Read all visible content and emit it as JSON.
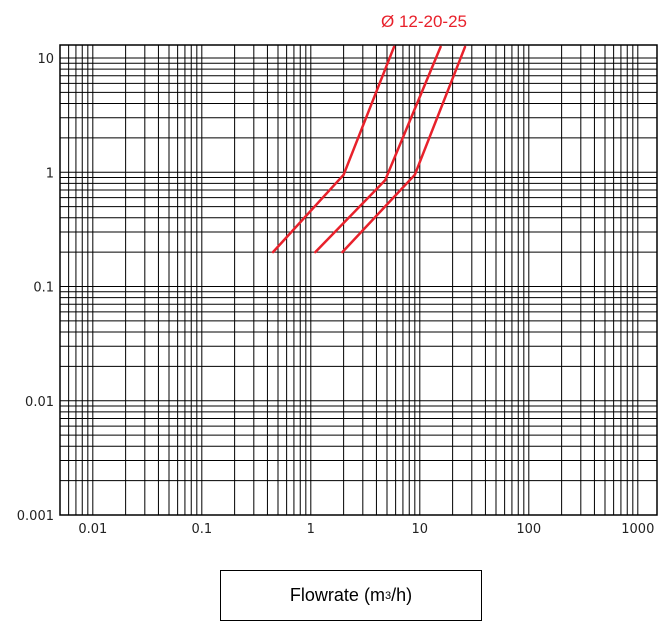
{
  "chart_data": {
    "type": "line",
    "title": "",
    "xlabel": {
      "prefix": "Flowrate (m",
      "sup": "3",
      "suffix": "/h)"
    },
    "ylabel": "",
    "xscale": "log",
    "yscale": "log",
    "xlim": [
      0.005,
      1500
    ],
    "ylim": [
      0.001,
      13
    ],
    "grid": true,
    "x_ticks": [
      {
        "value": 0.01,
        "label": "0.01"
      },
      {
        "value": 0.1,
        "label": "0.1"
      },
      {
        "value": 1,
        "label": "1"
      },
      {
        "value": 10,
        "label": "10"
      },
      {
        "value": 100,
        "label": "100"
      },
      {
        "value": 1000,
        "label": "1000"
      }
    ],
    "y_ticks": [
      {
        "value": 10,
        "label": "10"
      },
      {
        "value": 1,
        "label": "1"
      },
      {
        "value": 0.1,
        "label": "0.1"
      },
      {
        "value": 0.01,
        "label": "0.01"
      },
      {
        "value": 0.001,
        "label": "0.001"
      }
    ],
    "series_label": "Ø 12-20-25",
    "series_color": "#e8212b",
    "series": [
      {
        "points": [
          [
            0.45,
            0.2
          ],
          [
            2.0,
            0.95
          ],
          [
            5.8,
            12.5
          ]
        ]
      },
      {
        "points": [
          [
            1.1,
            0.2
          ],
          [
            4.8,
            0.85
          ],
          [
            15.5,
            12.5
          ]
        ]
      },
      {
        "points": [
          [
            1.95,
            0.2
          ],
          [
            9.0,
            0.95
          ],
          [
            26.0,
            12.5
          ]
        ]
      }
    ]
  }
}
